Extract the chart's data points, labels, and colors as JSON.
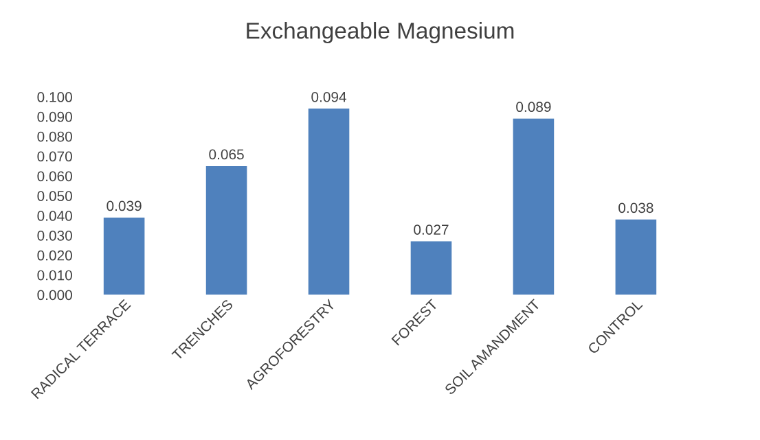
{
  "chart_data": {
    "type": "bar",
    "title": "Exchangeable Magnesium",
    "categories": [
      "RADICAL TERRACE",
      "TRENCHES",
      "AGROFORESTRY",
      "FOREST",
      "SOIL AMANDMENT",
      "CONTROL"
    ],
    "values": [
      0.039,
      0.065,
      0.094,
      0.027,
      0.089,
      0.038
    ],
    "color": "#4f81bd",
    "data_labels": true,
    "grid": false,
    "legend": false,
    "ylim": [
      0,
      0.1
    ],
    "yticks": [
      {
        "value": 0,
        "label": "0.000"
      },
      {
        "value": 0.01,
        "label": "0.010"
      },
      {
        "value": 0.02,
        "label": "0.020"
      },
      {
        "value": 0.03,
        "label": "0.030"
      },
      {
        "value": 0.04,
        "label": "0.040"
      },
      {
        "value": 0.05,
        "label": "0.050"
      },
      {
        "value": 0.06,
        "label": "0.060"
      },
      {
        "value": 0.07,
        "label": "0.070"
      },
      {
        "value": 0.08,
        "label": "0.080"
      },
      {
        "value": 0.09,
        "label": "0.090"
      },
      {
        "value": 0.1,
        "label": "0.100"
      }
    ]
  }
}
